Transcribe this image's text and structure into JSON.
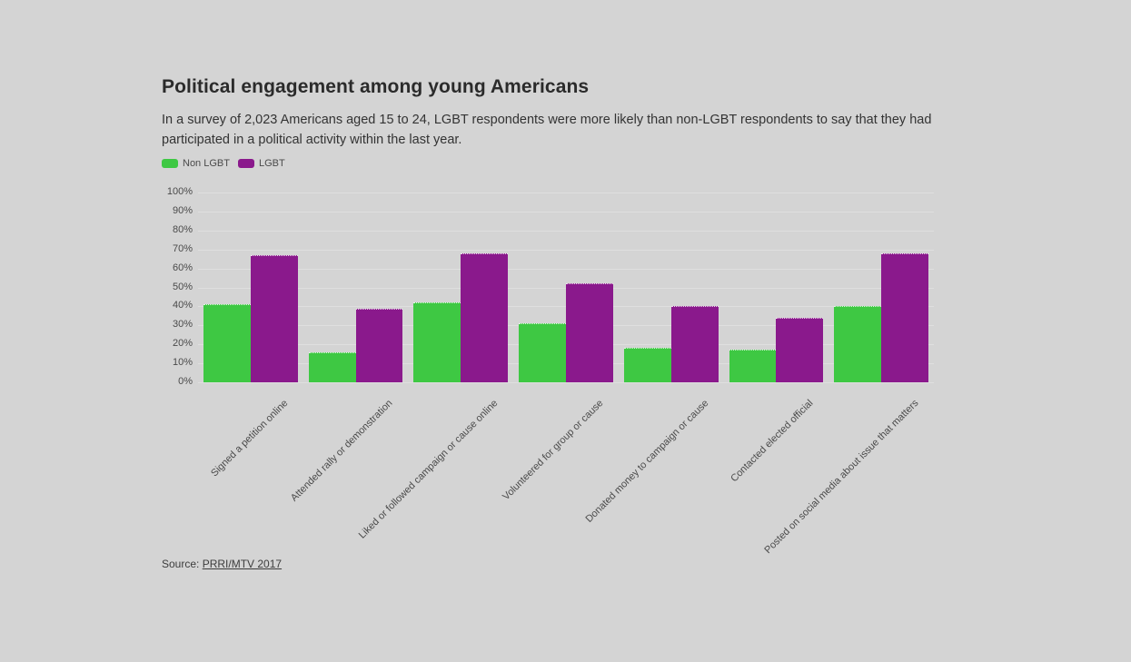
{
  "page": {
    "background_color": "#d4d4d4"
  },
  "header": {
    "title": "Political engagement among young Americans",
    "subtitle_line1": "In a survey of 2,023 Americans aged 15 to 24, LGBT respondents were more likely than non-LGBT respondents to say that they had",
    "subtitle_line2": "participated in a political activity within the last year."
  },
  "legend": {
    "items": [
      {
        "label": "Non LGBT",
        "color": "#3ec843"
      },
      {
        "label": "LGBT",
        "color": "#8a198c"
      }
    ]
  },
  "source": {
    "prefix": "Source: ",
    "link_text": "PRRI/MTV 2017"
  },
  "chart_data": {
    "type": "bar",
    "title": "Political engagement among young Americans",
    "categories": [
      "Signed a petition online",
      "Attended rally or demonstration",
      "Liked or followed campaign or cause online",
      "Volunteered for group or cause",
      "Donated money to campaign or cause",
      "Contacted elected official",
      "Posted on social media about issue that matters"
    ],
    "series": [
      {
        "name": "Non LGBT",
        "color": "#3ec843",
        "values": [
          41,
          16,
          42,
          31,
          18,
          17,
          40
        ]
      },
      {
        "name": "LGBT",
        "color": "#8a198c",
        "values": [
          67,
          39,
          68,
          52,
          40,
          34,
          68
        ]
      }
    ],
    "xlabel": "",
    "ylabel": "",
    "ylim": [
      0,
      100
    ],
    "y_ticks": [
      "0%",
      "10%",
      "20%",
      "30%",
      "40%",
      "50%",
      "60%",
      "70%",
      "80%",
      "90%",
      "100%"
    ],
    "grid": "horizontal",
    "legend_position": "top-left",
    "bar_value_unit": "%"
  }
}
